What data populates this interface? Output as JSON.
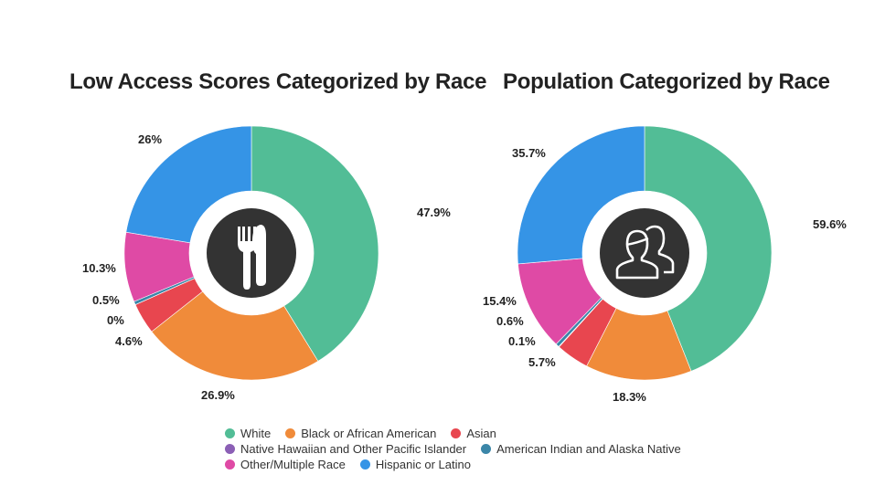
{
  "colors": {
    "white": "#52bd96",
    "black": "#f08b3a",
    "asian": "#e8464f",
    "nhpi": "#8b5fb5",
    "aian": "#3b86a8",
    "other": "#df4aa5",
    "hispanic": "#3594e6",
    "center": "#333333"
  },
  "chart_data": [
    {
      "type": "pie",
      "title": "Low Access Scores Categorized by Race",
      "center_icon": "fork-knife-icon",
      "series": [
        {
          "name": "White",
          "value": 47.9,
          "label": "47.9%",
          "color_key": "white"
        },
        {
          "name": "Black or African American",
          "value": 26.9,
          "label": "26.9%",
          "color_key": "black"
        },
        {
          "name": "Asian",
          "value": 4.6,
          "label": "4.6%",
          "color_key": "asian"
        },
        {
          "name": "Native Hawaiian and Other Pacific Islander",
          "value": 0,
          "label": "0%",
          "color_key": "nhpi"
        },
        {
          "name": "American Indian and Alaska Native",
          "value": 0.5,
          "label": "0.5%",
          "color_key": "aian"
        },
        {
          "name": "Other/Multiple Race",
          "value": 10.3,
          "label": "10.3%",
          "color_key": "other"
        },
        {
          "name": "Hispanic or Latino",
          "value": 26,
          "label": "26%",
          "color_key": "hispanic"
        }
      ]
    },
    {
      "type": "pie",
      "title": "Population Categorized by Race",
      "center_icon": "people-icon",
      "series": [
        {
          "name": "White",
          "value": 59.6,
          "label": "59.6%",
          "color_key": "white"
        },
        {
          "name": "Black or African American",
          "value": 18.3,
          "label": "18.3%",
          "color_key": "black"
        },
        {
          "name": "Asian",
          "value": 5.7,
          "label": "5.7%",
          "color_key": "asian"
        },
        {
          "name": "Native Hawaiian and Other Pacific Islander",
          "value": 0.1,
          "label": "0.1%",
          "color_key": "nhpi"
        },
        {
          "name": "American Indian and Alaska Native",
          "value": 0.6,
          "label": "0.6%",
          "color_key": "aian"
        },
        {
          "name": "Other/Multiple Race",
          "value": 15.4,
          "label": "15.4%",
          "color_key": "other"
        },
        {
          "name": "Hispanic or Latino",
          "value": 35.7,
          "label": "35.7%",
          "color_key": "hispanic"
        }
      ]
    }
  ],
  "legend": {
    "rows": [
      [
        {
          "label": "White",
          "color_key": "white"
        },
        {
          "label": "Black or African American",
          "color_key": "black"
        },
        {
          "label": "Asian",
          "color_key": "asian"
        }
      ],
      [
        {
          "label": "Native Hawaiian and Other Pacific Islander",
          "color_key": "nhpi"
        },
        {
          "label": "American Indian and Alaska Native",
          "color_key": "aian"
        }
      ],
      [
        {
          "label": "Other/Multiple Race",
          "color_key": "other"
        },
        {
          "label": "Hispanic or Latino",
          "color_key": "hispanic"
        }
      ]
    ]
  }
}
